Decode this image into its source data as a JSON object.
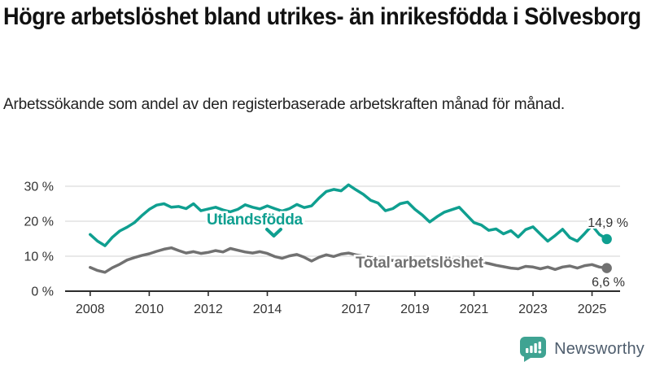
{
  "header": {
    "title": "Högre arbetslöshet bland utrikes- än inrikesfödda i Sölvesborg",
    "subtitle": "Arbetssökande som andel av den registerbaserade arbetskraften månad för månad."
  },
  "chart_data": {
    "type": "line",
    "title": "Högre arbetslöshet bland utrikes- än inrikesfödda i Sölvesborg",
    "subtitle": "Arbetssökande som andel av den registerbaserade arbetskraften månad för månad.",
    "x_unit": "decimal years (quarterly readings, Jan 2008 – mid 2025)",
    "y_unit": "percent of registered labour force",
    "xlim": [
      2007.15,
      2025.95
    ],
    "ylim": [
      0,
      33
    ],
    "grid": "horizontal",
    "x_ticks": [
      {
        "value": 2008,
        "label": "2008"
      },
      {
        "value": 2010,
        "label": "2010"
      },
      {
        "value": 2012,
        "label": "2012"
      },
      {
        "value": 2014,
        "label": "2014"
      },
      {
        "value": 2017,
        "label": "2017"
      },
      {
        "value": 2019,
        "label": "2019"
      },
      {
        "value": 2021,
        "label": "2021"
      },
      {
        "value": 2023,
        "label": "2023"
      },
      {
        "value": 2025,
        "label": "2025"
      }
    ],
    "y_ticks": [
      {
        "value": 0,
        "label": "0 %"
      },
      {
        "value": 10,
        "label": "10 %"
      },
      {
        "value": 20,
        "label": "20 %"
      },
      {
        "value": 30,
        "label": "30 %"
      }
    ],
    "colors": {
      "grid": "#dcdcdc",
      "axis": "#2b2b2b",
      "tick_text": "#333333",
      "value_label_text": "#333333"
    },
    "series": [
      {
        "name": "Utlandsfödda",
        "color": "#0f9f90",
        "end_label": "14,9 %",
        "end_value": 14.9,
        "points": [
          [
            2008.0,
            16.2
          ],
          [
            2008.25,
            14.3
          ],
          [
            2008.5,
            13.0
          ],
          [
            2008.75,
            15.4
          ],
          [
            2009.0,
            17.2
          ],
          [
            2009.25,
            18.3
          ],
          [
            2009.5,
            19.6
          ],
          [
            2009.75,
            21.6
          ],
          [
            2010.0,
            23.4
          ],
          [
            2010.25,
            24.6
          ],
          [
            2010.5,
            25.0
          ],
          [
            2010.75,
            24.0
          ],
          [
            2011.0,
            24.2
          ],
          [
            2011.25,
            23.6
          ],
          [
            2011.5,
            25.0
          ],
          [
            2011.75,
            23.0
          ],
          [
            2012.0,
            23.5
          ],
          [
            2012.25,
            24.0
          ],
          [
            2012.5,
            23.2
          ],
          [
            2012.75,
            22.7
          ],
          [
            2013.0,
            23.4
          ],
          [
            2013.25,
            24.7
          ],
          [
            2013.5,
            24.0
          ],
          [
            2013.75,
            23.5
          ],
          [
            2014.0,
            24.4
          ],
          [
            2014.25,
            23.6
          ],
          [
            2014.5,
            22.9
          ],
          [
            2014.75,
            23.6
          ],
          [
            2015.0,
            24.8
          ],
          [
            2015.25,
            23.9
          ],
          [
            2015.5,
            24.4
          ],
          [
            2015.75,
            26.6
          ],
          [
            2016.0,
            28.5
          ],
          [
            2016.25,
            29.1
          ],
          [
            2016.5,
            28.7
          ],
          [
            2016.75,
            30.4
          ],
          [
            2017.0,
            29.0
          ],
          [
            2017.25,
            27.7
          ],
          [
            2017.5,
            26.0
          ],
          [
            2017.75,
            25.2
          ],
          [
            2018.0,
            23.0
          ],
          [
            2018.25,
            23.6
          ],
          [
            2018.5,
            25.0
          ],
          [
            2018.75,
            25.5
          ],
          [
            2019.0,
            23.4
          ],
          [
            2019.25,
            21.8
          ],
          [
            2019.5,
            19.8
          ],
          [
            2019.75,
            21.3
          ],
          [
            2020.0,
            22.6
          ],
          [
            2020.25,
            23.3
          ],
          [
            2020.5,
            24.0
          ],
          [
            2020.75,
            21.8
          ],
          [
            2021.0,
            19.6
          ],
          [
            2021.25,
            18.9
          ],
          [
            2021.5,
            17.4
          ],
          [
            2021.75,
            17.8
          ],
          [
            2022.0,
            16.4
          ],
          [
            2022.25,
            17.3
          ],
          [
            2022.5,
            15.5
          ],
          [
            2022.75,
            17.6
          ],
          [
            2023.0,
            18.4
          ],
          [
            2023.25,
            16.3
          ],
          [
            2023.5,
            14.3
          ],
          [
            2023.75,
            15.9
          ],
          [
            2024.0,
            17.7
          ],
          [
            2024.25,
            15.3
          ],
          [
            2024.5,
            14.3
          ],
          [
            2024.75,
            16.5
          ],
          [
            2025.0,
            18.8
          ],
          [
            2025.25,
            16.2
          ],
          [
            2025.5,
            14.9
          ]
        ]
      },
      {
        "name": "Total arbetslöshet",
        "color": "#717171",
        "end_label": "6,6 %",
        "end_value": 6.6,
        "points": [
          [
            2008.0,
            6.8
          ],
          [
            2008.25,
            5.9
          ],
          [
            2008.5,
            5.4
          ],
          [
            2008.75,
            6.7
          ],
          [
            2009.0,
            7.7
          ],
          [
            2009.25,
            8.9
          ],
          [
            2009.5,
            9.6
          ],
          [
            2009.75,
            10.2
          ],
          [
            2010.0,
            10.7
          ],
          [
            2010.25,
            11.4
          ],
          [
            2010.5,
            12.0
          ],
          [
            2010.75,
            12.4
          ],
          [
            2011.0,
            11.6
          ],
          [
            2011.25,
            10.9
          ],
          [
            2011.5,
            11.3
          ],
          [
            2011.75,
            10.8
          ],
          [
            2012.0,
            11.1
          ],
          [
            2012.25,
            11.6
          ],
          [
            2012.5,
            11.2
          ],
          [
            2012.75,
            12.2
          ],
          [
            2013.0,
            11.7
          ],
          [
            2013.25,
            11.2
          ],
          [
            2013.5,
            10.9
          ],
          [
            2013.75,
            11.3
          ],
          [
            2014.0,
            10.8
          ],
          [
            2014.25,
            9.9
          ],
          [
            2014.5,
            9.4
          ],
          [
            2014.75,
            10.1
          ],
          [
            2015.0,
            10.5
          ],
          [
            2015.25,
            9.7
          ],
          [
            2015.5,
            8.6
          ],
          [
            2015.75,
            9.7
          ],
          [
            2016.0,
            10.4
          ],
          [
            2016.25,
            9.9
          ],
          [
            2016.5,
            10.6
          ],
          [
            2016.75,
            10.9
          ],
          [
            2017.0,
            10.4
          ],
          [
            2017.25,
            10.0
          ],
          [
            2017.5,
            9.6
          ],
          [
            2017.75,
            9.3
          ],
          [
            2018.0,
            9.0
          ],
          [
            2018.25,
            8.8
          ],
          [
            2018.5,
            8.6
          ],
          [
            2018.75,
            8.4
          ],
          [
            2019.0,
            8.2
          ],
          [
            2019.25,
            8.1
          ],
          [
            2019.5,
            8.0
          ],
          [
            2019.75,
            8.2
          ],
          [
            2020.0,
            8.5
          ],
          [
            2020.25,
            9.1
          ],
          [
            2020.5,
            9.3
          ],
          [
            2020.75,
            9.0
          ],
          [
            2021.0,
            8.7
          ],
          [
            2021.25,
            8.3
          ],
          [
            2021.5,
            7.9
          ],
          [
            2021.75,
            7.4
          ],
          [
            2022.0,
            7.0
          ],
          [
            2022.25,
            6.6
          ],
          [
            2022.5,
            6.4
          ],
          [
            2022.75,
            7.1
          ],
          [
            2023.0,
            6.9
          ],
          [
            2023.25,
            6.4
          ],
          [
            2023.5,
            6.9
          ],
          [
            2023.75,
            6.2
          ],
          [
            2024.0,
            6.9
          ],
          [
            2024.25,
            7.2
          ],
          [
            2024.5,
            6.6
          ],
          [
            2024.75,
            7.3
          ],
          [
            2025.0,
            7.6
          ],
          [
            2025.25,
            6.9
          ],
          [
            2025.5,
            6.6
          ]
        ]
      }
    ]
  },
  "footer": {
    "brand": "Newsworthy",
    "brand_color": "#4e5d6d",
    "icon_color": "#3fa392"
  }
}
